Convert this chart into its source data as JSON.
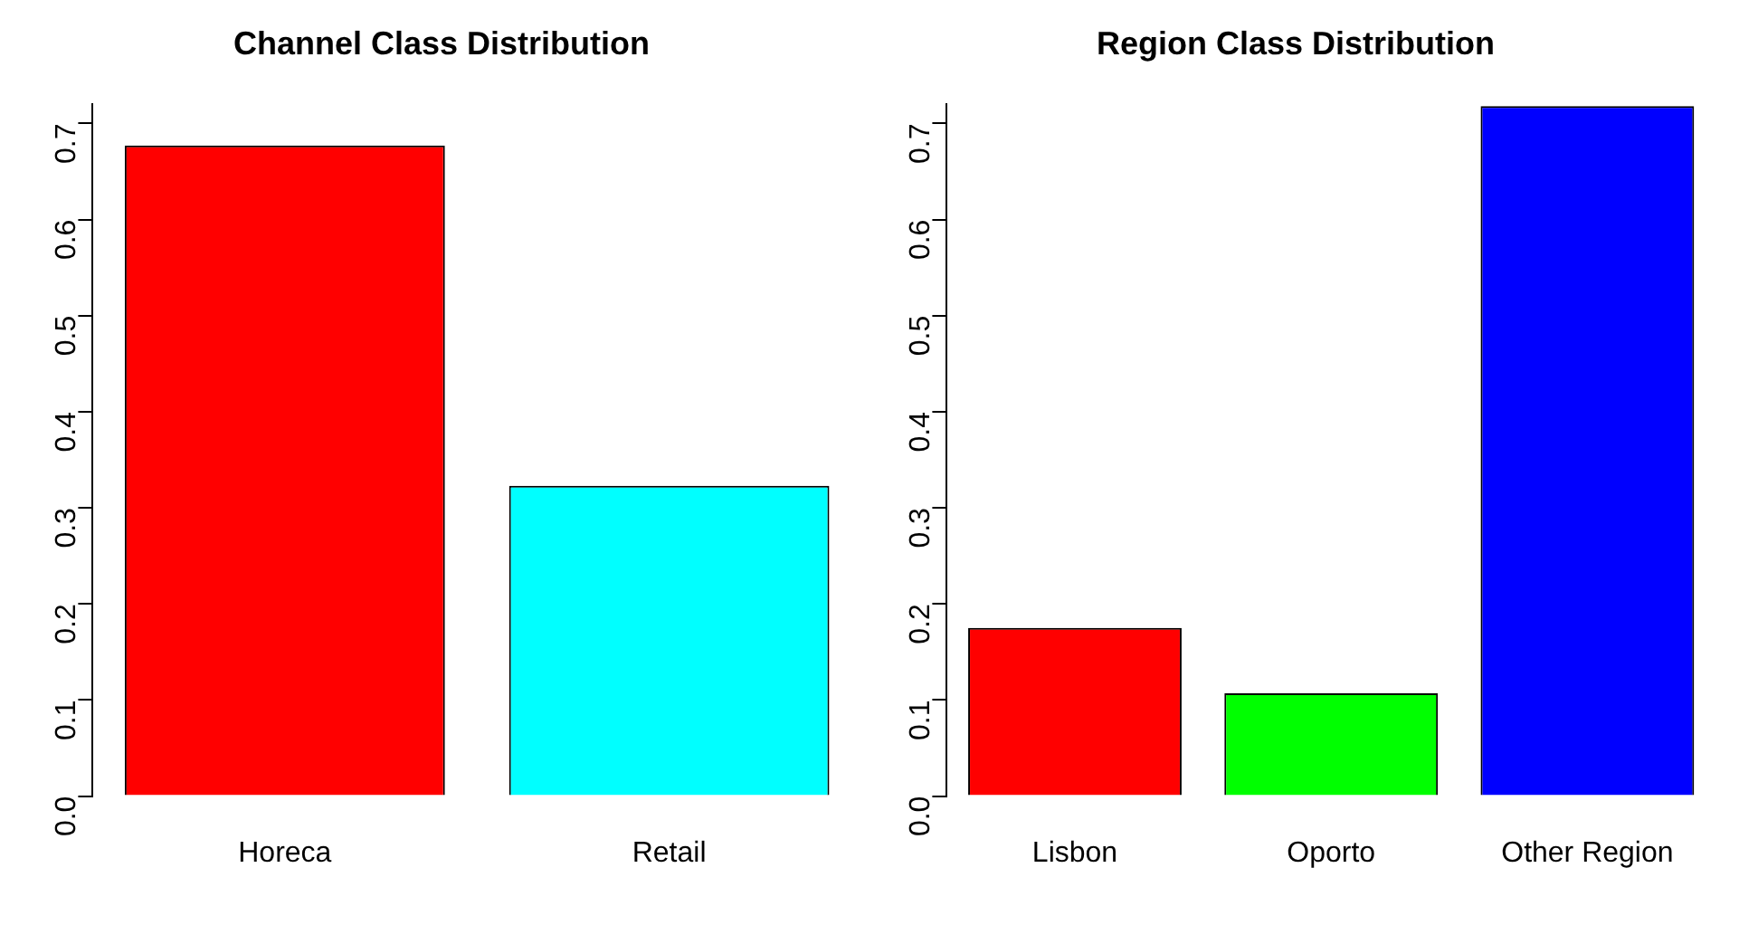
{
  "chart_data": [
    {
      "type": "bar",
      "title": "Channel Class Distribution",
      "categories": [
        "Horeca",
        "Retail"
      ],
      "values": [
        0.677,
        0.323
      ],
      "colors": [
        "#ff0000",
        "#00ffff"
      ],
      "ylim": [
        0,
        0.72
      ],
      "yticks": [
        {
          "value": 0,
          "label": "0.0"
        },
        0.1,
        0.2,
        0.3,
        0.4,
        0.5,
        0.6,
        0.7
      ],
      "grid": false
    },
    {
      "type": "bar",
      "title": "Region Class Distribution",
      "categories": [
        "Lisbon",
        "Oporto",
        "Other Region"
      ],
      "values": [
        0.175,
        0.107,
        0.718
      ],
      "colors": [
        "#ff0000",
        "#00ff00",
        "#0000ff"
      ],
      "ylim": [
        0,
        0.72
      ],
      "yticks": [
        {
          "value": 0,
          "label": "0.0"
        },
        0.1,
        0.2,
        0.3,
        0.4,
        0.5,
        0.6,
        0.7
      ],
      "grid": false
    }
  ]
}
